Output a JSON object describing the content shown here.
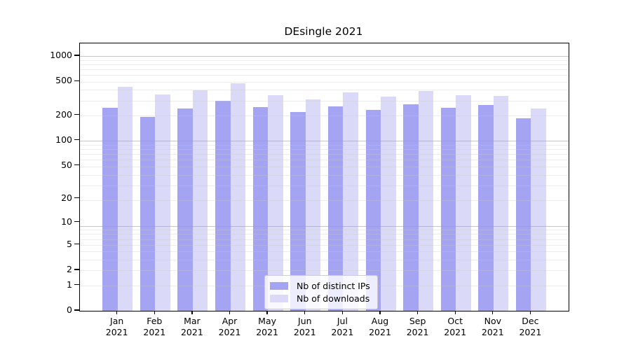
{
  "figure": {
    "background": "#ffffff",
    "axis_color": "#000000",
    "major_grid_color": "#c6c6c6",
    "minor_grid_color": "#ececec"
  },
  "chart_data": {
    "type": "bar",
    "title": "DEsingle 2021",
    "categories": [
      "Jan",
      "Feb",
      "Mar",
      "Apr",
      "May",
      "Jun",
      "Jul",
      "Aug",
      "Sep",
      "Oct",
      "Nov",
      "Dec"
    ],
    "x_year": "2021",
    "series": [
      {
        "name": "Nb of distinct IPs",
        "color": "#a4a4f2",
        "values": [
          243,
          192,
          239,
          294,
          249,
          218,
          252,
          233,
          269,
          246,
          263,
          183
        ]
      },
      {
        "name": "Nb of downloads",
        "color": "#dadaf8",
        "values": [
          431,
          350,
          394,
          475,
          346,
          310,
          373,
          335,
          385,
          347,
          338,
          239
        ]
      }
    ],
    "xlabel": "",
    "ylabel": "",
    "yscale": "log10(value+1)",
    "yticks": [
      1000,
      500,
      200,
      100,
      50,
      20,
      10,
      5,
      2,
      1,
      0
    ],
    "ylim": [
      0,
      1410
    ],
    "grid": true,
    "legend_position": "lower center"
  }
}
